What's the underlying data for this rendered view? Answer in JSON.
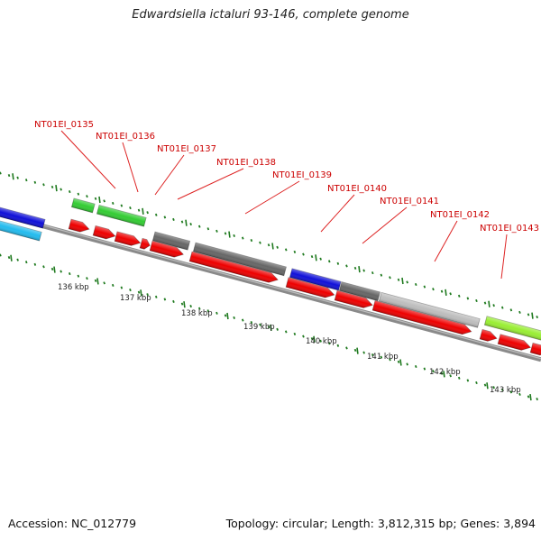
{
  "title": "Edwardsiella ictaluri 93-146, complete genome",
  "accession": "Accession: NC_012779",
  "summary": "Topology: circular; Length: 3,812,315 bp; Genes: 3,894",
  "kbp_labels": [
    "136 kbp",
    "137 kbp",
    "138 kbp",
    "139 kbp",
    "140 kbp",
    "141 kbp",
    "142 kbp",
    "143 kbp"
  ],
  "gene_labels": [
    "NT01EI_0135",
    "NT01EI_0136",
    "NT01EI_0137",
    "NT01EI_0138",
    "NT01EI_0139",
    "NT01EI_0140",
    "NT01EI_0141",
    "NT01EI_0142",
    "NT01EI_0143"
  ],
  "colors": {
    "backbone": "#8a8a8a",
    "tick": "#1f7a1f",
    "label": "#cc0000",
    "leader": "#dd2222",
    "cds": "#ee0000",
    "blue": "#1010d8",
    "cyan": "#22bbee",
    "green": "#33cc33",
    "dark_gray": "#666666",
    "light_gray": "#bdbdbd",
    "lime": "#99ee33"
  }
}
